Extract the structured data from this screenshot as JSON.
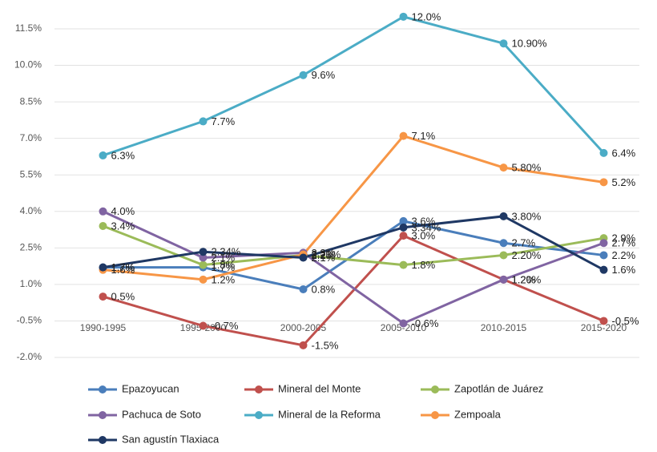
{
  "chart_data": {
    "type": "line",
    "categories": [
      "1990-1995",
      "1995-2000",
      "2000-2005",
      "2005-2010",
      "2010-2015",
      "2015-2020"
    ],
    "ylim": [
      -2.0,
      12.5
    ],
    "yticks": [
      {
        "value": -2.0,
        "label": "-2.0%"
      },
      {
        "value": -0.5,
        "label": "-0.5%"
      },
      {
        "value": 1.0,
        "label": "1.0%"
      },
      {
        "value": 2.5,
        "label": "2.5%"
      },
      {
        "value": 4.0,
        "label": "4.0%"
      },
      {
        "value": 5.5,
        "label": "5.5%"
      },
      {
        "value": 7.0,
        "label": "7.0%"
      },
      {
        "value": 8.5,
        "label": "8.5%"
      },
      {
        "value": 10.0,
        "label": "10.0%"
      },
      {
        "value": 11.5,
        "label": "11.5%"
      }
    ],
    "grid": true,
    "legend": "bottom",
    "series": [
      {
        "name": "Epazoyucan",
        "color": "#4a7ebb",
        "values": [
          1.7,
          1.7,
          0.8,
          3.6,
          2.7,
          2.2
        ],
        "value_labels": [
          "1.7%",
          "1.7%",
          "0.8%",
          "3.6%",
          "2.7%",
          "2.2%"
        ]
      },
      {
        "name": "Mineral del Monte",
        "color": "#c0504d",
        "values": [
          0.5,
          -0.7,
          -1.5,
          3.0,
          1.2,
          -0.5
        ],
        "value_labels": [
          "0.5%",
          "-0.7%",
          "-1.5%",
          "3.0%",
          "1.20%",
          "-0.5%"
        ]
      },
      {
        "name": "Zapotlán de Juárez",
        "color": "#9bbb59",
        "values": [
          3.4,
          1.8,
          2.2,
          1.8,
          2.2,
          2.9
        ],
        "value_labels": [
          "3.4%",
          "1.8%",
          "2.2%",
          "1.8%",
          "2.20%",
          "2.9%"
        ]
      },
      {
        "name": "Pachuca de Soto",
        "color": "#8064a2",
        "values": [
          4.0,
          2.1,
          2.3,
          -0.6,
          1.2,
          2.7
        ],
        "value_labels": [
          "4.0%",
          "2.1%",
          "2.3%",
          "-0.6%",
          "1.2%",
          "2.7%"
        ]
      },
      {
        "name": "Mineral de la Reforma",
        "color": "#4bacc6",
        "values": [
          6.3,
          7.7,
          9.6,
          12.0,
          10.9,
          6.4
        ],
        "value_labels": [
          "6.3%",
          "7.7%",
          "9.6%",
          "12.0%",
          "10.90%",
          "6.4%"
        ]
      },
      {
        "name": "Zempoala",
        "color": "#f79646",
        "values": [
          1.6,
          1.2,
          2.23,
          7.1,
          5.8,
          5.2
        ],
        "value_labels": [
          "1.6%",
          "1.2%",
          "2.23%",
          "7.1%",
          "5.80%",
          "5.2%"
        ]
      },
      {
        "name": "San agustín Tlaxiaca",
        "color": "#1f3864",
        "values": [
          1.7,
          2.34,
          2.1,
          3.34,
          3.8,
          1.6
        ],
        "value_labels": [
          "1.7%",
          "2.34%",
          "2.1%",
          "3.34%",
          "3.80%",
          "1.6%"
        ]
      }
    ]
  }
}
